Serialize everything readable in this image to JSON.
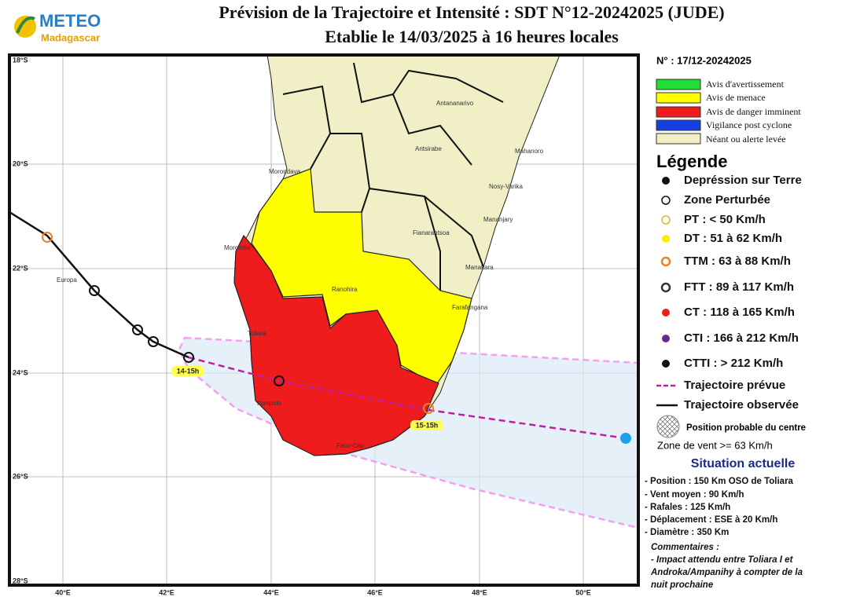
{
  "header": {
    "logo_top": "METEO",
    "logo_bottom": "Madagascar",
    "title": "Prévision de la Trajectoire et Intensité : SDT N°12-20242025 (JUDE)",
    "subtitle": "Etablie le 14/03/2025 à 16 heures locales"
  },
  "map": {
    "lat_labels": [
      "18°S",
      "20°S",
      "22°S",
      "24°S",
      "26°S",
      "28°S"
    ],
    "lon_labels": [
      "40°E",
      "42°E",
      "44°E",
      "46°E",
      "48°E",
      "50°E"
    ],
    "places": [
      "Antananarivo",
      "Antsirabe",
      "Mahanoro",
      "Morondava",
      "Nosy-Varika",
      "Mananjary",
      "Fianarantsoa",
      "Morombe",
      "Manakara",
      "Ranohira",
      "Farafangana",
      "Europa",
      "Toliara",
      "Itampolo",
      "Faux-Cap"
    ],
    "time_labels": [
      "14-15h",
      "15-15h"
    ]
  },
  "panel": {
    "number": "N° : 17/12-20242025",
    "alerts": [
      "Avis d'avertissement",
      "Avis de menace",
      "Avis de danger imminent",
      "Vigilance post cyclone",
      "Néant ou alerte levée"
    ],
    "legend_title": "Légende",
    "legend": [
      "Depréssion sur Terre",
      "Zone Perturbée",
      "PT : < 50 Km/h",
      "DT : 51 à 62 Km/h",
      "TTM : 63 à 88 Km/h",
      "FTT : 89 à 117 Km/h",
      "CT : 118 à 165 Km/h",
      "CTI : 166 à 212 Km/h",
      "CTTI : > 212 Km/h",
      "Trajectoire prévue",
      "Trajectoire observée",
      "Position probable du centre"
    ],
    "wind_zone": "Zone de vent >= 63 Km/h",
    "situation_title": "Situation actuelle",
    "situation": [
      "- Position : 150 Km OSO de Toliara",
      "- Vent moyen : 90 Km/h",
      "- Rafales : 125 Km/h",
      "- Déplacement : ESE à 20 Km/h",
      "- Diamètre : 350 Km"
    ],
    "comments": [
      "Commentaires :",
      "- Impact attendu entre Toliara I et",
      "Androka/Ampanihy à compter de la",
      "nuit prochaine"
    ]
  }
}
